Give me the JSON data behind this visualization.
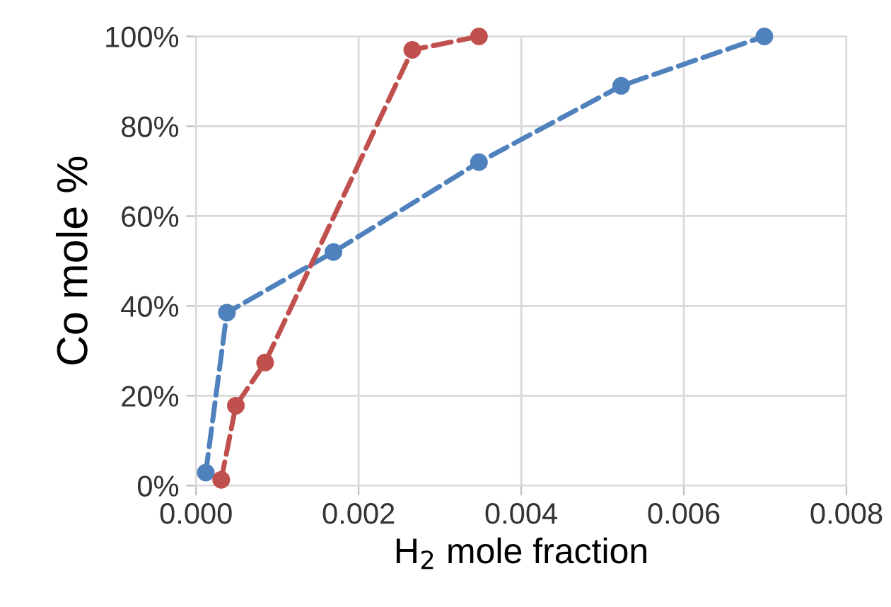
{
  "chart_data": {
    "type": "line",
    "xlabel": "H$_{2}$ mole fraction",
    "ylabel": "Co mole %",
    "series": [
      {
        "color": "#4f81bd",
        "x": [
          0.00012,
          0.00038,
          0.00169,
          0.00348,
          0.00523,
          0.00699
        ],
        "values": [
          2.9,
          38.5,
          52,
          72,
          89,
          100
        ]
      },
      {
        "color": "#c0504d",
        "x": [
          0.00031,
          0.00049,
          0.00085,
          0.00266,
          0.00348
        ],
        "values": [
          1.3,
          17.8,
          27.4,
          97,
          100
        ]
      }
    ],
    "xlim": [
      0,
      0.008
    ],
    "xticks": [
      {
        "value": 0,
        "label": "0.000"
      },
      {
        "value": 0.002,
        "label": "0.002"
      },
      {
        "value": 0.004,
        "label": "0.004"
      },
      {
        "value": 0.006,
        "label": "0.006"
      },
      {
        "value": 0.008,
        "label": "0.008"
      }
    ],
    "ylim": [
      0,
      100
    ],
    "yticks": [
      {
        "value": 0,
        "label": "0%"
      },
      {
        "value": 20,
        "label": "20%"
      },
      {
        "value": 40,
        "label": "40%"
      },
      {
        "value": 60,
        "label": "60%"
      },
      {
        "value": 80,
        "label": "80%"
      },
      {
        "value": 100,
        "label": "100%"
      }
    ],
    "grid": true,
    "marker": "circle",
    "line_style": "dashed"
  }
}
